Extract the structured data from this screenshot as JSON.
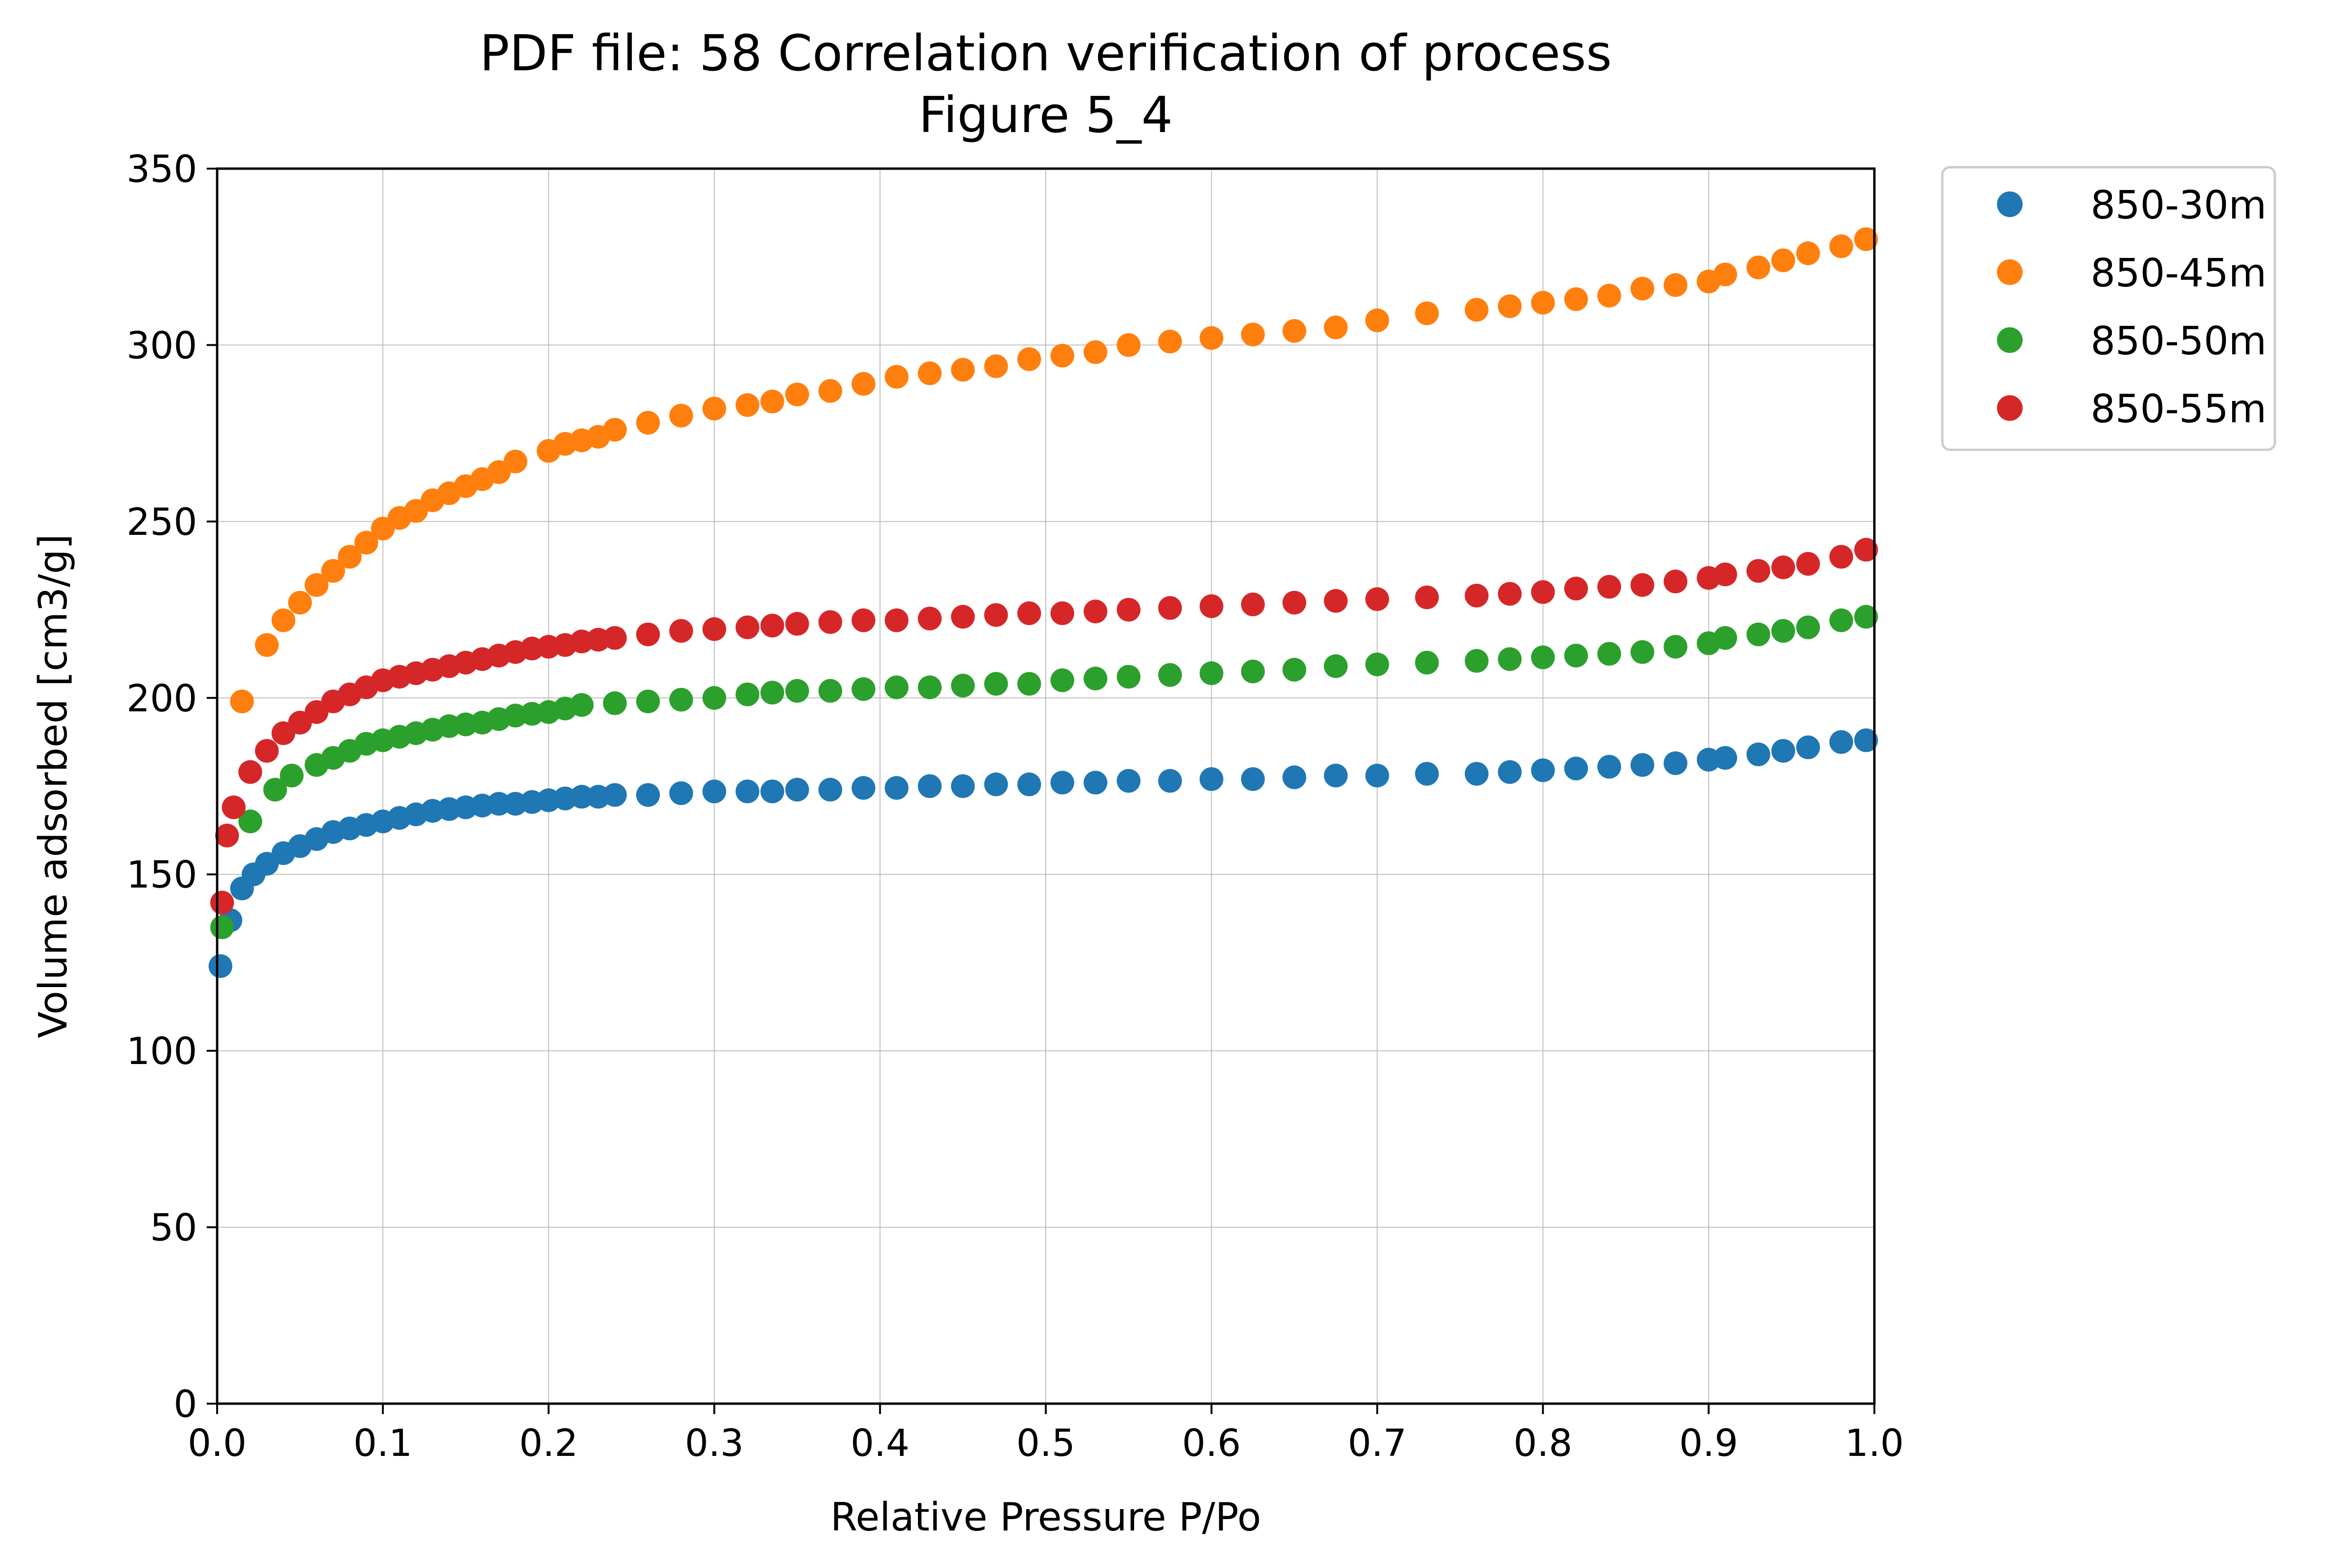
{
  "chart_data": {
    "type": "scatter",
    "title": [
      "PDF file: 58 Correlation verification of process",
      "Figure 5_4"
    ],
    "xlabel": "Relative Pressure P/Po",
    "ylabel": "Volume adsorbed [cm3/g]",
    "xlim": [
      0.0,
      1.0
    ],
    "ylim": [
      0,
      350
    ],
    "xticks": [
      "0.0",
      "0.1",
      "0.2",
      "0.3",
      "0.4",
      "0.5",
      "0.6",
      "0.7",
      "0.8",
      "0.9",
      "1.0"
    ],
    "yticks": [
      "0",
      "50",
      "100",
      "150",
      "200",
      "250",
      "300",
      "350"
    ],
    "grid": true,
    "legend_position": "outside-top-right",
    "series": [
      {
        "name": "850-30m",
        "color": "#1f77b4",
        "x": [
          0.002,
          0.008,
          0.015,
          0.022,
          0.03,
          0.04,
          0.05,
          0.06,
          0.07,
          0.08,
          0.09,
          0.1,
          0.11,
          0.12,
          0.13,
          0.14,
          0.15,
          0.16,
          0.17,
          0.18,
          0.19,
          0.2,
          0.21,
          0.22,
          0.23,
          0.24,
          0.26,
          0.28,
          0.3,
          0.32,
          0.335,
          0.35,
          0.37,
          0.39,
          0.41,
          0.43,
          0.45,
          0.47,
          0.49,
          0.51,
          0.53,
          0.55,
          0.575,
          0.6,
          0.625,
          0.65,
          0.675,
          0.7,
          0.73,
          0.76,
          0.78,
          0.8,
          0.82,
          0.84,
          0.86,
          0.88,
          0.9,
          0.91,
          0.93,
          0.945,
          0.96,
          0.98,
          0.995
        ],
        "y": [
          124,
          137,
          146,
          150,
          153,
          156,
          158,
          160,
          162,
          163,
          164,
          165,
          166,
          167,
          168,
          168.5,
          169,
          169.5,
          170,
          170,
          170.5,
          171,
          171.5,
          172,
          172,
          172.5,
          172.5,
          173,
          173.5,
          173.5,
          173.5,
          174,
          174,
          174.5,
          174.5,
          175,
          175,
          175.5,
          175.5,
          176,
          176,
          176.5,
          176.5,
          177,
          177,
          177.5,
          178,
          178,
          178.5,
          178.5,
          179,
          179.5,
          180,
          180.5,
          181,
          181.5,
          182.5,
          183,
          184,
          185,
          186,
          187.5,
          188
        ]
      },
      {
        "name": "850-45m",
        "color": "#ff7f0e",
        "x": [
          0.015,
          0.03,
          0.04,
          0.05,
          0.06,
          0.07,
          0.08,
          0.09,
          0.1,
          0.11,
          0.12,
          0.13,
          0.14,
          0.15,
          0.16,
          0.17,
          0.18,
          0.2,
          0.21,
          0.22,
          0.23,
          0.24,
          0.26,
          0.28,
          0.3,
          0.32,
          0.335,
          0.35,
          0.37,
          0.39,
          0.41,
          0.43,
          0.45,
          0.47,
          0.49,
          0.51,
          0.53,
          0.55,
          0.575,
          0.6,
          0.625,
          0.65,
          0.675,
          0.7,
          0.73,
          0.76,
          0.78,
          0.8,
          0.82,
          0.84,
          0.86,
          0.88,
          0.9,
          0.91,
          0.93,
          0.945,
          0.96,
          0.98,
          0.995
        ],
        "y": [
          199,
          215,
          222,
          227,
          232,
          236,
          240,
          244,
          248,
          251,
          253,
          256,
          258,
          260,
          262,
          264,
          267,
          270,
          272,
          273,
          274,
          276,
          278,
          280,
          282,
          283,
          284,
          286,
          287,
          289,
          291,
          292,
          293,
          294,
          296,
          297,
          298,
          300,
          301,
          302,
          303,
          304,
          305,
          307,
          309,
          310,
          311,
          312,
          313,
          314,
          316,
          317,
          318,
          320,
          322,
          324,
          326,
          328,
          330
        ]
      },
      {
        "name": "850-50m",
        "color": "#2ca02c",
        "x": [
          0.003,
          0.02,
          0.035,
          0.045,
          0.06,
          0.07,
          0.08,
          0.09,
          0.1,
          0.11,
          0.12,
          0.13,
          0.14,
          0.15,
          0.16,
          0.17,
          0.18,
          0.19,
          0.2,
          0.21,
          0.22,
          0.24,
          0.26,
          0.28,
          0.3,
          0.32,
          0.335,
          0.35,
          0.37,
          0.39,
          0.41,
          0.43,
          0.45,
          0.47,
          0.49,
          0.51,
          0.53,
          0.55,
          0.575,
          0.6,
          0.625,
          0.65,
          0.675,
          0.7,
          0.73,
          0.76,
          0.78,
          0.8,
          0.82,
          0.84,
          0.86,
          0.88,
          0.9,
          0.91,
          0.93,
          0.945,
          0.96,
          0.98,
          0.995
        ],
        "y": [
          135,
          165,
          174,
          178,
          181,
          183,
          185,
          187,
          188,
          189,
          190,
          191,
          192,
          192.5,
          193,
          194,
          195,
          195.5,
          196,
          197,
          198,
          198.5,
          199,
          199.5,
          200,
          201,
          201.5,
          202,
          202,
          202.5,
          203,
          203,
          203.5,
          204,
          204,
          205,
          205.5,
          206,
          206.5,
          207,
          207.5,
          208,
          209,
          209.5,
          210,
          210.5,
          211,
          211.5,
          212,
          212.5,
          213,
          214.5,
          215.5,
          217,
          218,
          219,
          220,
          222,
          223
        ]
      },
      {
        "name": "850-55m",
        "color": "#d62728",
        "x": [
          0.003,
          0.006,
          0.01,
          0.02,
          0.03,
          0.04,
          0.05,
          0.06,
          0.07,
          0.08,
          0.09,
          0.1,
          0.11,
          0.12,
          0.13,
          0.14,
          0.15,
          0.16,
          0.17,
          0.18,
          0.19,
          0.2,
          0.21,
          0.22,
          0.23,
          0.24,
          0.26,
          0.28,
          0.3,
          0.32,
          0.335,
          0.35,
          0.37,
          0.39,
          0.41,
          0.43,
          0.45,
          0.47,
          0.49,
          0.51,
          0.53,
          0.55,
          0.575,
          0.6,
          0.625,
          0.65,
          0.675,
          0.7,
          0.73,
          0.76,
          0.78,
          0.8,
          0.82,
          0.84,
          0.86,
          0.88,
          0.9,
          0.91,
          0.93,
          0.945,
          0.96,
          0.98,
          0.995
        ],
        "y": [
          142,
          161,
          169,
          179,
          185,
          190,
          193,
          196,
          199,
          201,
          203,
          205,
          206,
          207,
          208,
          209,
          210,
          211,
          212,
          213,
          214,
          214.5,
          215,
          216,
          216.5,
          217,
          218,
          219,
          219.5,
          220,
          220.5,
          221,
          221.5,
          222,
          222,
          222.5,
          223,
          223.5,
          224,
          224,
          224.5,
          225,
          225.5,
          226,
          226.5,
          227,
          227.5,
          228,
          228.5,
          229,
          229.5,
          230,
          231,
          231.5,
          232,
          233,
          234,
          235,
          236,
          237,
          238,
          240,
          242
        ]
      }
    ]
  }
}
